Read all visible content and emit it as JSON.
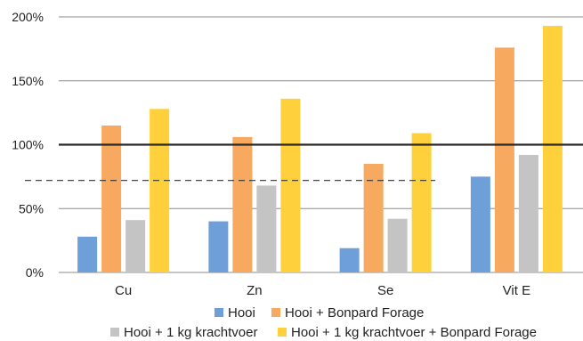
{
  "chart_data": {
    "type": "bar",
    "categories": [
      "Cu",
      "Zn",
      "Se",
      "Vit E"
    ],
    "series": [
      {
        "name": "Hooi",
        "color": "#6e9fd8",
        "values": [
          28,
          40,
          19,
          75
        ]
      },
      {
        "name": "Hooi + Bonpard Forage",
        "color": "#f6a95f",
        "values": [
          115,
          106,
          85,
          176
        ]
      },
      {
        "name": "Hooi + 1 kg krachtvoer",
        "color": "#c4c4c4",
        "values": [
          41,
          68,
          42,
          92
        ]
      },
      {
        "name": "Hooi + 1 kg krachtvoer + Bonpard Forage",
        "color": "#fed13c",
        "values": [
          128,
          136,
          109,
          193
        ]
      }
    ],
    "ylim": [
      0,
      200
    ],
    "yticks": [
      "0%",
      "50%",
      "100%",
      "150%",
      "200%"
    ],
    "ytick_values": [
      0,
      50,
      100,
      150,
      200
    ],
    "reference_line": {
      "value": 100,
      "style": "solid"
    },
    "threshold_line": {
      "value": 72,
      "style": "dashed"
    },
    "grid": true,
    "legend_position": "bottom"
  }
}
